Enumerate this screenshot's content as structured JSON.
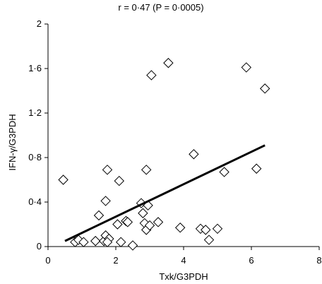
{
  "chart_data": {
    "type": "scatter",
    "title": "r = 0·47 (P = 0·0005)",
    "xlabel": "Txk/G3PDH",
    "ylabel": "IFN-γ/G3PDH",
    "xlim": [
      0,
      8
    ],
    "ylim": [
      0,
      2
    ],
    "xticks": [
      "0",
      "2",
      "4",
      "6",
      "8"
    ],
    "yticks": [
      "0",
      "0·4",
      "0·8",
      "1·2",
      "1·6",
      "2"
    ],
    "marker": "diamond-open",
    "grid": false,
    "points": [
      {
        "x": 0.45,
        "y": 0.6
      },
      {
        "x": 0.8,
        "y": 0.04
      },
      {
        "x": 0.9,
        "y": 0.06
      },
      {
        "x": 1.05,
        "y": 0.04
      },
      {
        "x": 1.4,
        "y": 0.05
      },
      {
        "x": 1.5,
        "y": 0.28
      },
      {
        "x": 1.65,
        "y": 0.05
      },
      {
        "x": 1.7,
        "y": 0.41
      },
      {
        "x": 1.7,
        "y": 0.1
      },
      {
        "x": 1.75,
        "y": 0.69
      },
      {
        "x": 1.8,
        "y": 0.07
      },
      {
        "x": 1.75,
        "y": 0.04
      },
      {
        "x": 2.05,
        "y": 0.2
      },
      {
        "x": 2.1,
        "y": 0.59
      },
      {
        "x": 2.15,
        "y": 0.04
      },
      {
        "x": 2.3,
        "y": 0.23
      },
      {
        "x": 2.35,
        "y": 0.22
      },
      {
        "x": 2.5,
        "y": 0.01
      },
      {
        "x": 2.75,
        "y": 0.39
      },
      {
        "x": 2.8,
        "y": 0.3
      },
      {
        "x": 2.85,
        "y": 0.21
      },
      {
        "x": 2.9,
        "y": 0.15
      },
      {
        "x": 2.9,
        "y": 0.69
      },
      {
        "x": 2.95,
        "y": 0.37
      },
      {
        "x": 3.0,
        "y": 0.19
      },
      {
        "x": 3.05,
        "y": 1.54
      },
      {
        "x": 3.25,
        "y": 0.22
      },
      {
        "x": 3.55,
        "y": 1.65
      },
      {
        "x": 3.9,
        "y": 0.17
      },
      {
        "x": 4.3,
        "y": 0.83
      },
      {
        "x": 4.5,
        "y": 0.16
      },
      {
        "x": 4.65,
        "y": 0.15
      },
      {
        "x": 4.75,
        "y": 0.06
      },
      {
        "x": 5.0,
        "y": 0.16
      },
      {
        "x": 5.2,
        "y": 0.67
      },
      {
        "x": 5.85,
        "y": 1.61
      },
      {
        "x": 6.15,
        "y": 0.7
      },
      {
        "x": 6.4,
        "y": 1.42
      }
    ],
    "trendline": {
      "x": [
        0.5,
        6.4
      ],
      "y": [
        0.05,
        0.91
      ]
    }
  }
}
